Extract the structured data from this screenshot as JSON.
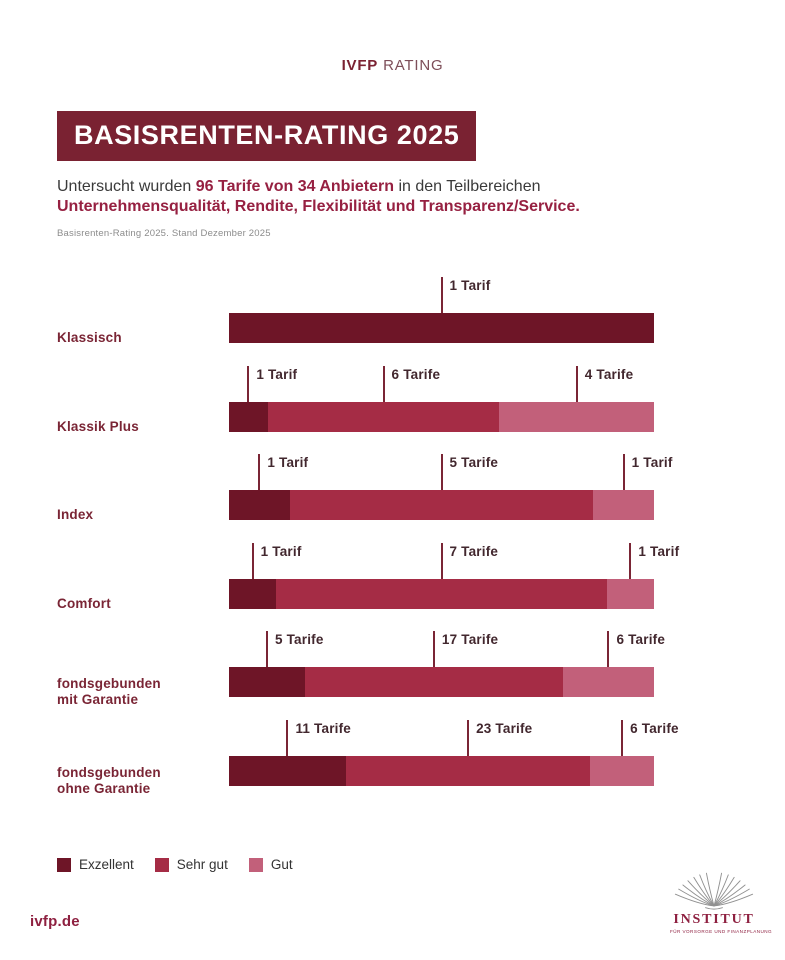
{
  "brand": {
    "bold": "IVFP",
    "light": "RATING"
  },
  "title": "BASISRENTEN-RATING 2025",
  "intro": {
    "pre": "Untersucht wurden ",
    "highlight1": "96 Tarife von 34 Anbietern",
    "mid": " in den Teilbereichen",
    "highlight2": "Unternehmensqualität, Rendite, Flexibilität und Transparenz/Service."
  },
  "note": "Basisrenten-Rating 2025. Stand Dezember 2025",
  "colors": {
    "banner_bg": "#7a2232",
    "accent_text": "#962041",
    "category_text": "#7a2535",
    "tick_line": "#7a2535",
    "exzellent": "#6e1527",
    "sehr_gut": "#a52c45",
    "gut": "#c2607a"
  },
  "chart_data": {
    "type": "bar",
    "orientation": "horizontal-stacked",
    "title": "BASISRENTEN-RATING 2025",
    "legend_position": "bottom-left",
    "grid": false,
    "legend": [
      {
        "label": "Exzellent",
        "color": "#6e1527"
      },
      {
        "label": "Sehr gut",
        "color": "#a52c45"
      },
      {
        "label": "Gut",
        "color": "#c2607a"
      }
    ],
    "total_tarife": 96,
    "total_anbieter": 34,
    "rows": [
      {
        "category": "Klassisch",
        "lines": [
          "Klassisch"
        ],
        "segments": [
          {
            "rating": "Exzellent",
            "count": 1,
            "label": "1 Tarif"
          }
        ]
      },
      {
        "category": "Klassik Plus",
        "lines": [
          "Klassik Plus"
        ],
        "segments": [
          {
            "rating": "Exzellent",
            "count": 1,
            "label": "1 Tarif"
          },
          {
            "rating": "Sehr gut",
            "count": 6,
            "label": "6 Tarife"
          },
          {
            "rating": "Gut",
            "count": 4,
            "label": "4 Tarife"
          }
        ]
      },
      {
        "category": "Index",
        "lines": [
          "Index"
        ],
        "segments": [
          {
            "rating": "Exzellent",
            "count": 1,
            "label": "1 Tarif"
          },
          {
            "rating": "Sehr gut",
            "count": 5,
            "label": "5 Tarife"
          },
          {
            "rating": "Gut",
            "count": 1,
            "label": "1 Tarif"
          }
        ]
      },
      {
        "category": "Comfort",
        "lines": [
          "Comfort"
        ],
        "segments": [
          {
            "rating": "Exzellent",
            "count": 1,
            "label": "1 Tarif"
          },
          {
            "rating": "Sehr gut",
            "count": 7,
            "label": "7 Tarife"
          },
          {
            "rating": "Gut",
            "count": 1,
            "label": "1 Tarif"
          }
        ]
      },
      {
        "category": "fondsgebunden mit Garantie",
        "lines": [
          "fondsgebunden",
          "mit Garantie"
        ],
        "segments": [
          {
            "rating": "Exzellent",
            "count": 5,
            "label": "5 Tarife"
          },
          {
            "rating": "Sehr gut",
            "count": 17,
            "label": "17 Tarife"
          },
          {
            "rating": "Gut",
            "count": 6,
            "label": "6 Tarife"
          }
        ]
      },
      {
        "category": "fondsgebunden ohne Garantie",
        "lines": [
          "fondsgebunden",
          "ohne Garantie"
        ],
        "segments": [
          {
            "rating": "Exzellent",
            "count": 11,
            "label": "11 Tarife"
          },
          {
            "rating": "Sehr gut",
            "count": 23,
            "label": "23 Tarife"
          },
          {
            "rating": "Gut",
            "count": 6,
            "label": "6 Tarife"
          }
        ]
      }
    ]
  },
  "footer": {
    "website": "ivfp.de",
    "logo": {
      "name": "INSTITUT",
      "tagline": "FÜR VORSORGE UND FINANZPLANUNG"
    }
  }
}
